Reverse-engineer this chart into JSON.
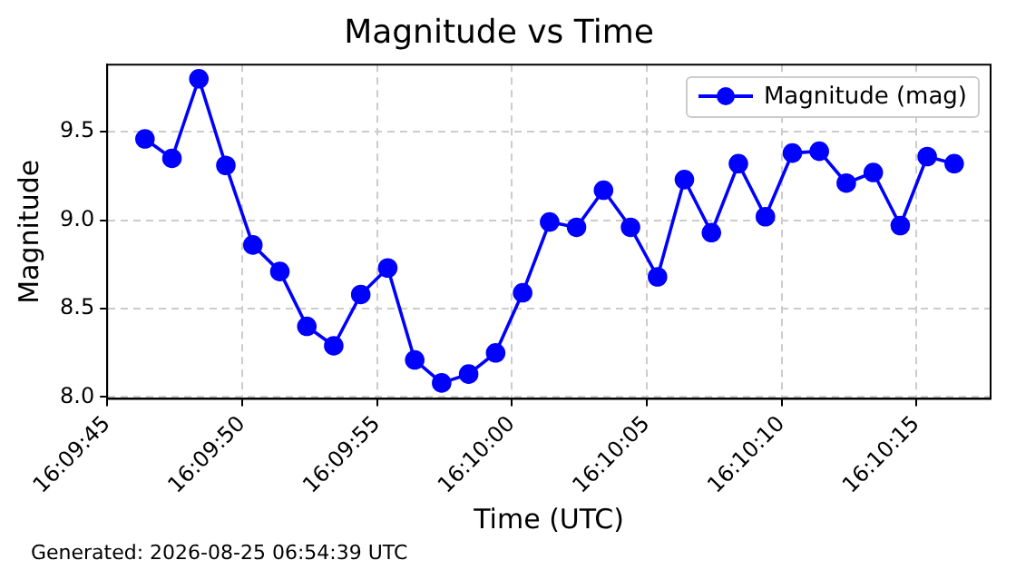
{
  "chart_data": {
    "type": "line",
    "title": "Magnitude vs Time",
    "xlabel": "Time (UTC)",
    "ylabel": "Magnitude",
    "annotations": [
      "Generated: 2026-08-25 06:54:39 UTC"
    ],
    "x": [
      16.162889,
      16.163167,
      16.163444,
      16.163722,
      16.164,
      16.164278,
      16.164556,
      16.164833,
      16.165111,
      16.165389,
      16.165667,
      16.165944,
      16.166222,
      16.1665,
      16.166778,
      16.167056,
      16.167333,
      16.167611,
      16.167889,
      16.168167,
      16.168444,
      16.168722,
      16.169,
      16.169278,
      16.169556,
      16.169833,
      16.170111,
      16.170389,
      16.170667,
      16.170944,
      16.171222
    ],
    "series": [
      {
        "name": "Magnitude (mag)",
        "color": "#0000ff",
        "values": [
          9.46,
          9.35,
          9.8,
          9.31,
          8.86,
          8.71,
          8.4,
          8.29,
          8.58,
          8.73,
          8.21,
          8.08,
          8.13,
          8.25,
          8.59,
          8.99,
          8.96,
          9.17,
          8.96,
          8.68,
          9.23,
          8.93,
          9.32,
          9.02,
          9.38,
          9.39,
          9.21,
          9.27,
          8.97,
          9.36,
          9.32
        ]
      }
    ],
    "xlim": [
      16.1625,
      16.171597
    ],
    "xticks": [
      {
        "value": 16.1625,
        "label": "16:09:45"
      },
      {
        "value": 16.163889,
        "label": "16:09:50"
      },
      {
        "value": 16.165278,
        "label": "16:09:55"
      },
      {
        "value": 16.166667,
        "label": "16:10:00"
      },
      {
        "value": 16.168056,
        "label": "16:10:05"
      },
      {
        "value": 16.169444,
        "label": "16:10:10"
      },
      {
        "value": 16.170833,
        "label": "16:10:15"
      }
    ],
    "ylim": [
      7.99,
      9.88
    ],
    "yticks": [
      {
        "value": 8.0,
        "label": "8.0"
      },
      {
        "value": 8.5,
        "label": "8.5"
      },
      {
        "value": 9.0,
        "label": "9.0"
      },
      {
        "value": 9.5,
        "label": "9.5"
      }
    ],
    "grid": true,
    "legend": "top right",
    "marker": "circle",
    "line_style": "solid"
  }
}
